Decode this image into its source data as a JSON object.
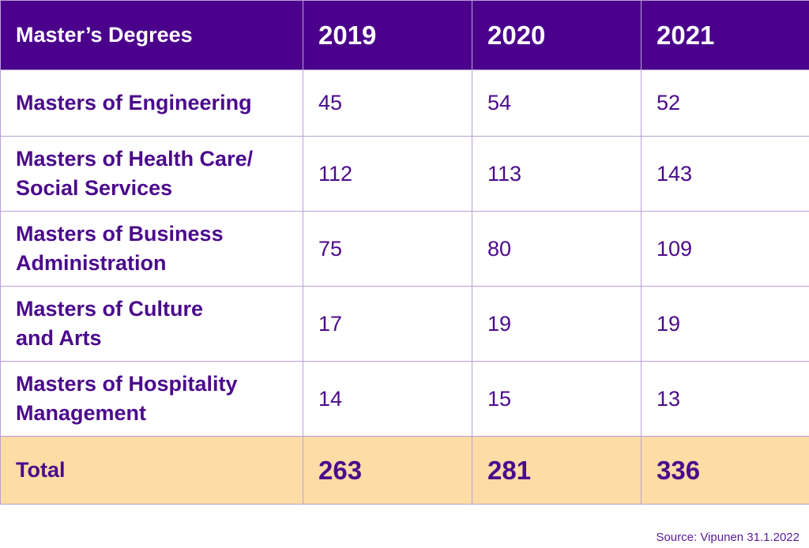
{
  "chart_data": {
    "type": "table",
    "header": {
      "label": "Master’s Degrees",
      "years": [
        "2019",
        "2020",
        "2021"
      ]
    },
    "rows": [
      {
        "label_lines": [
          "Masters of Engineering"
        ],
        "values": [
          "45",
          "54",
          "52"
        ]
      },
      {
        "label_lines": [
          "Masters of Health Care/",
          "Social Services"
        ],
        "values": [
          "112",
          "113",
          "143"
        ]
      },
      {
        "label_lines": [
          "Masters of Business",
          "Administration"
        ],
        "values": [
          "75",
          "80",
          "109"
        ]
      },
      {
        "label_lines": [
          "Masters of Culture",
          "and Arts"
        ],
        "values": [
          "17",
          "19",
          "19"
        ]
      },
      {
        "label_lines": [
          "Masters of Hospitality",
          "Management"
        ],
        "values": [
          "14",
          "15",
          "13"
        ]
      }
    ],
    "total": {
      "label": "Total",
      "values": [
        "263",
        "281",
        "336"
      ]
    }
  },
  "source": "Source: Vipunen 31.1.2022",
  "colors": {
    "header_bg": "#4b008c",
    "text": "#4b0a8c",
    "total_bg": "#fddca6",
    "border": "#b9a0d8"
  }
}
